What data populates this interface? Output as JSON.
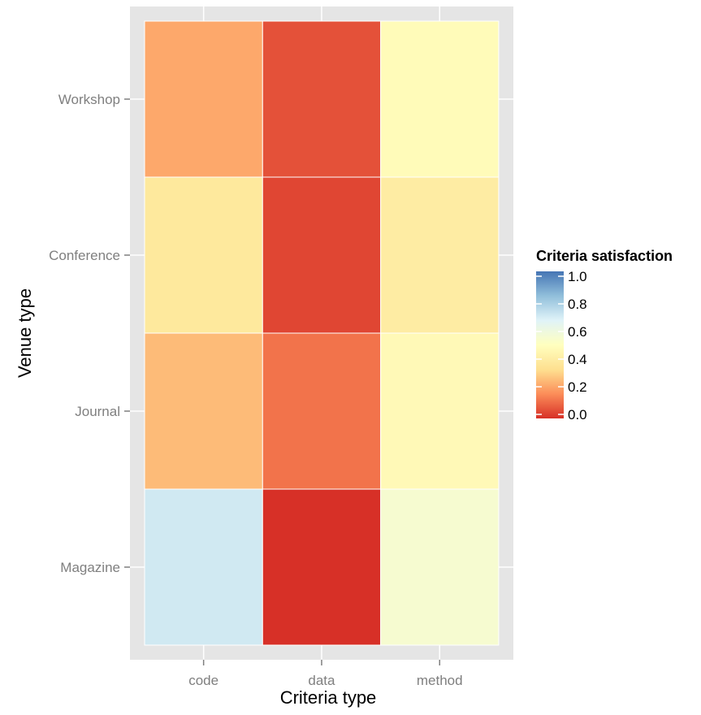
{
  "chart_data": {
    "type": "heatmap",
    "xlabel": "Criteria type",
    "ylabel": "Venue type",
    "x_categories": [
      "code",
      "data",
      "method"
    ],
    "y_categories": [
      "Workshop",
      "Conference",
      "Journal",
      "Magazine"
    ],
    "values": [
      [
        0.22,
        0.06,
        0.48
      ],
      [
        0.38,
        0.04,
        0.4
      ],
      [
        0.26,
        0.12,
        0.47
      ],
      [
        0.7,
        0.0,
        0.55
      ]
    ],
    "legend": {
      "title": "Criteria satisfaction",
      "ticks": [
        "1.0",
        "0.8",
        "0.6",
        "0.4",
        "0.2",
        "0.0"
      ],
      "range": [
        0,
        1
      ],
      "colors": [
        "#D73027",
        "#FC8D59",
        "#FEE090",
        "#FFFFBF",
        "#E0F3F8",
        "#91BFDB",
        "#4575B4"
      ]
    },
    "panel_background": "#E5E5E5",
    "grid": true
  }
}
